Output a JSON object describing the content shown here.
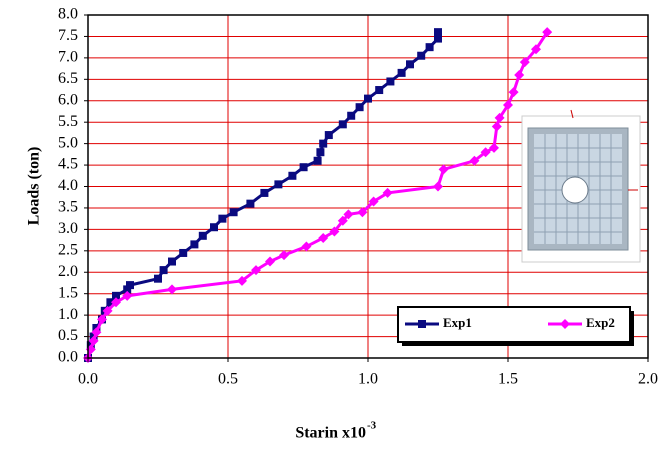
{
  "chart_data": {
    "type": "line",
    "xlabel": "Starin x10",
    "xlabel_sup": "-3",
    "ylabel": "Loads (ton)",
    "xlim": [
      0,
      2.0
    ],
    "ylim": [
      0,
      8.0
    ],
    "xticks": [
      {
        "value": 0,
        "label": "0.0"
      },
      {
        "value": 0.5,
        "label": "0.5"
      },
      {
        "value": 1.0,
        "label": "1.0"
      },
      {
        "value": 1.5,
        "label": "1.5"
      },
      {
        "value": 2.0,
        "label": "2.0"
      }
    ],
    "yticks": [
      {
        "value": 0,
        "label": "0.0"
      },
      {
        "value": 0.5,
        "label": "0.5"
      },
      {
        "value": 1.0,
        "label": "1.0"
      },
      {
        "value": 1.5,
        "label": "1.5"
      },
      {
        "value": 2.0,
        "label": "2.0"
      },
      {
        "value": 2.5,
        "label": "2.5"
      },
      {
        "value": 3.0,
        "label": "3.0"
      },
      {
        "value": 3.5,
        "label": "3.5"
      },
      {
        "value": 4.0,
        "label": "4.0"
      },
      {
        "value": 4.5,
        "label": "4.5"
      },
      {
        "value": 5.0,
        "label": "5.0"
      },
      {
        "value": 5.5,
        "label": "5.5"
      },
      {
        "value": 6.0,
        "label": "6.0"
      },
      {
        "value": 6.5,
        "label": "6.5"
      },
      {
        "value": 7.0,
        "label": "7.0"
      },
      {
        "value": 7.5,
        "label": "7.5"
      },
      {
        "value": 8.0,
        "label": "8.0"
      }
    ],
    "grid": true,
    "grid_color": "#e00000",
    "legend": "lower right",
    "series": [
      {
        "name": "Exp1",
        "color": "#0a0a80",
        "marker": "square",
        "x": [
          0,
          0.01,
          0.02,
          0.03,
          0.05,
          0.06,
          0.08,
          0.1,
          0.14,
          0.15,
          0.25,
          0.27,
          0.3,
          0.34,
          0.38,
          0.41,
          0.45,
          0.48,
          0.52,
          0.58,
          0.63,
          0.68,
          0.73,
          0.77,
          0.82,
          0.83,
          0.84,
          0.86,
          0.91,
          0.94,
          0.97,
          1.0,
          1.04,
          1.08,
          1.12,
          1.15,
          1.19,
          1.22,
          1.25,
          1.25
        ],
        "values": [
          0,
          0.3,
          0.5,
          0.7,
          0.9,
          1.1,
          1.3,
          1.45,
          1.6,
          1.7,
          1.85,
          2.05,
          2.25,
          2.45,
          2.65,
          2.85,
          3.05,
          3.25,
          3.4,
          3.6,
          3.85,
          4.05,
          4.25,
          4.45,
          4.6,
          4.8,
          5.0,
          5.2,
          5.45,
          5.65,
          5.85,
          6.05,
          6.25,
          6.45,
          6.65,
          6.85,
          7.05,
          7.25,
          7.45,
          7.6
        ]
      },
      {
        "name": "Exp2",
        "color": "#ff00ff",
        "marker": "diamond",
        "x": [
          0,
          0.01,
          0.02,
          0.03,
          0.05,
          0.07,
          0.1,
          0.14,
          0.3,
          0.55,
          0.6,
          0.65,
          0.7,
          0.78,
          0.84,
          0.88,
          0.91,
          0.93,
          0.98,
          1.02,
          1.07,
          1.25,
          1.27,
          1.38,
          1.42,
          1.45,
          1.46,
          1.47,
          1.5,
          1.52,
          1.54,
          1.56,
          1.6,
          1.64
        ],
        "values": [
          0,
          0.2,
          0.4,
          0.6,
          0.9,
          1.1,
          1.3,
          1.45,
          1.6,
          1.8,
          2.05,
          2.25,
          2.4,
          2.6,
          2.8,
          2.95,
          3.2,
          3.35,
          3.4,
          3.65,
          3.85,
          4.0,
          4.4,
          4.6,
          4.8,
          4.9,
          5.4,
          5.6,
          5.9,
          6.2,
          6.6,
          6.9,
          7.2,
          7.6
        ]
      }
    ]
  }
}
